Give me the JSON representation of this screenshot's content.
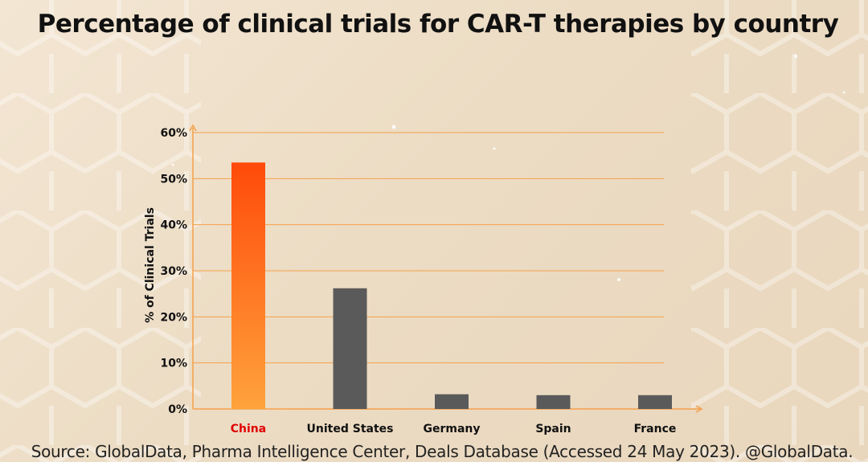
{
  "chart_data": {
    "type": "bar",
    "title": "Percentage of clinical trials for CAR-T therapies by country",
    "categories": [
      "China",
      "United States",
      "Germany",
      "Spain",
      "France"
    ],
    "values": [
      53.5,
      26.2,
      3.2,
      3.0,
      3.0
    ],
    "ylabel": "% of Clinical Trials",
    "xlabel": "",
    "ylim": [
      0,
      60
    ],
    "yticks": [
      "0%",
      "10%",
      "20%",
      "30%",
      "40%",
      "50%",
      "60%"
    ],
    "grid": true,
    "highlight_category": "China",
    "colors": {
      "highlight_top": "#ff4a0a",
      "highlight_bottom": "#ffa33c",
      "bar": "#5a5a5a",
      "grid": "#f5a04a",
      "highlight_label": "#e00000"
    }
  },
  "source": "Source: GlobalData, Pharma Intelligence Center, Deals Database (Accessed 24 May 2023). @GlobalData."
}
